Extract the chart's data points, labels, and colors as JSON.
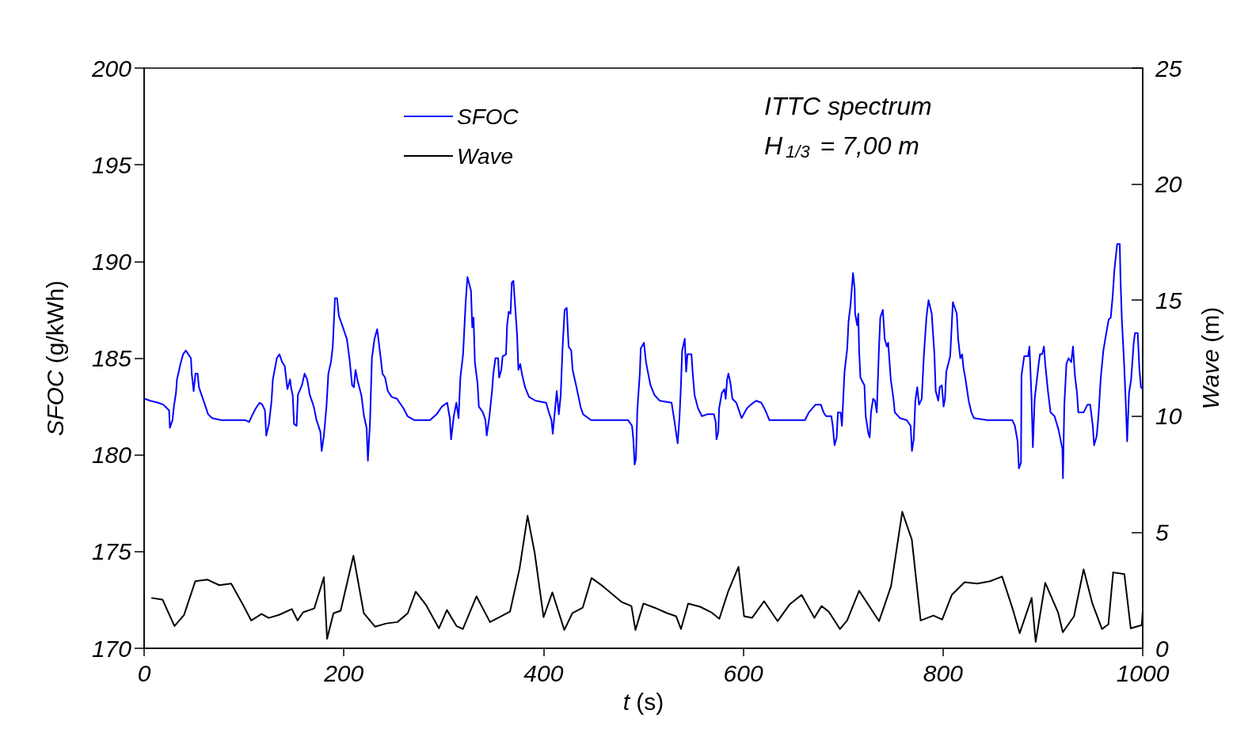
{
  "chart_data": {
    "type": "line",
    "xlabel": "t (s)",
    "ylabel": "SFOC (g/kWh)",
    "y2label": "Wave (m)",
    "annotations": [
      "ITTC spectrum",
      "H$_{1/3}$ = 7,00 m"
    ],
    "xlim": [
      0,
      1000
    ],
    "xticks": [
      0,
      200,
      400,
      600,
      800,
      1000
    ],
    "ylim": [
      170,
      200
    ],
    "yticks": [
      170,
      175,
      180,
      185,
      190,
      195,
      200
    ],
    "y2lim": [
      0,
      25
    ],
    "y2ticks": [
      0,
      5,
      10,
      15,
      20,
      25
    ],
    "legend": "top left",
    "marker": "none",
    "line_style": "solid",
    "series": [
      {
        "name": "SFOC",
        "color": "#0000ff",
        "x": [
          0.7,
          6,
          13.9,
          19.2,
          23.1,
          25,
          25.8,
          28.4,
          29.8,
          31.9,
          32.9,
          36.4,
          39,
          41.7,
          44.3,
          46.9,
          47.7,
          49.6,
          51.4,
          53.6,
          54.9,
          57.5,
          60.2,
          64.1,
          68.1,
          77.4,
          101.2,
          105.1,
          107.8,
          111.7,
          115.7,
          118.3,
          121,
          122.3,
          125,
          127.6,
          128.9,
          132.9,
          135.5,
          138.2,
          140.8,
          143.5,
          146.1,
          147.4,
          148.8,
          150.1,
          152.7,
          154,
          158,
          160.7,
          163.3,
          165.9,
          169.9,
          172.6,
          176.5,
          177.8,
          180,
          182.6,
          184.5,
          187.1,
          188.9,
          191.1,
          193.2,
          195,
          199,
          203,
          205.6,
          208.3,
          210.1,
          211.7,
          213.5,
          217.5,
          220.2,
          222.8,
          224.1,
          226.2,
          228.1,
          230.7,
          233.4,
          236,
          238.7,
          241.3,
          244,
          247.9,
          253.2,
          259.8,
          263.8,
          270.4,
          286.3,
          292.9,
          298.2,
          303.5,
          306.1,
          307.4,
          310.1,
          312.7,
          314.9,
          316.7,
          319.4,
          322,
          323.8,
          327.3,
          328.6,
          329.9,
          331.2,
          333.9,
          335.2,
          339.2,
          341.8,
          343.1,
          345.8,
          348.4,
          349.7,
          351.8,
          354.5,
          355.5,
          357.7,
          359,
          362.4,
          363.5,
          365.1,
          366.9,
          368.2,
          369.8,
          370.9,
          373.5,
          374.8,
          376.7,
          378.3,
          381.5,
          385.4,
          392,
          402.6,
          405.3,
          407.9,
          409.2,
          410.5,
          413.2,
          415.3,
          417.2,
          419,
          421.1,
          423.2,
          425.1,
          427.7,
          429.1,
          433,
          437,
          439.6,
          447.6,
          484.6,
          488.6,
          489.9,
          491.2,
          492.5,
          493.9,
          496.5,
          497.3,
          500.5,
          502.6,
          504.4,
          507.1,
          511,
          516.3,
          528.2,
          530.9,
          534.3,
          536.2,
          537.5,
          538.8,
          541.4,
          542.8,
          544.1,
          548.1,
          549.4,
          551.2,
          554.7,
          558.6,
          563.9,
          570.5,
          572.4,
          573.2,
          575,
          575.8,
          578.5,
          581.1,
          582.4,
          583.8,
          585.1,
          587.2,
          589.1,
          593,
          598.3,
          603.6,
          607.6,
          612.9,
          618.1,
          622.1,
          626.1,
          661.8,
          665.7,
          672.4,
          677.7,
          680.3,
          682.9,
          688.2,
          689.6,
          691.4,
          693.5,
          694.8,
          697.5,
          698.8,
          700.1,
          701.4,
          704.1,
          705.4,
          707.3,
          709.9,
          711.5,
          712,
          714.1,
          715.2,
          716,
          717.3,
          721.3,
          722.6,
          725.3,
          726.6,
          727.9,
          730,
          731.9,
          733.7,
          735.8,
          737.2,
          739.8,
          741.6,
          743.8,
          745.1,
          747.7,
          750.4,
          751.7,
          757,
          763.6,
          767.6,
          768.9,
          770.7,
          772.3,
          774.2,
          776,
          778.7,
          780.8,
          783.4,
          785.5,
          788.7,
          791.4,
          792.7,
          795.3,
          796.7,
          798.8,
          800.6,
          802,
          803.3,
          807.2,
          809.9,
          811.2,
          813.8,
          815.2,
          817.3,
          819.1,
          820.5,
          822.6,
          825.7,
          828.4,
          831,
          844.2,
          869.4,
          872,
          874.7,
          876,
          878.1,
          878.6,
          881.3,
          885.2,
          886.6,
          888.7,
          890,
          891.8,
          895.8,
          897.1,
          899.3,
          901.1,
          902.4,
          905.1,
          907.7,
          911.7,
          915.7,
          919.6,
          920.1,
          921.5,
          923.6,
          925.7,
          928.4,
          930.2,
          932.1,
          934.2,
          935.5,
          940.8,
          944.7,
          947.4,
          950,
          951.3,
          954,
          955.8,
          958,
          960.6,
          963.2,
          965.9,
          968,
          969.9,
          971.7,
          974.4,
          977,
          977.8,
          979.1,
          981.3,
          983.1,
          984.4,
          986.3,
          988.4,
          991,
          992.3,
          995,
          996.6,
          998.2,
          1000
        ],
        "values": [
          182.9,
          182.8,
          182.7,
          182.6,
          182.4,
          182.3,
          181.4,
          181.8,
          182.5,
          183.2,
          183.9,
          184.7,
          185.2,
          185.4,
          185.2,
          185,
          184.2,
          183.3,
          184.2,
          184.2,
          183.5,
          183.1,
          182.7,
          182.1,
          181.9,
          181.8,
          181.8,
          181.7,
          182,
          182.4,
          182.7,
          182.6,
          182.3,
          181,
          181.6,
          182.8,
          183.9,
          185,
          185.2,
          184.8,
          184.6,
          183.4,
          183.9,
          183.4,
          183.1,
          181.6,
          181.5,
          183.1,
          183.6,
          184.2,
          183.9,
          183.1,
          182.5,
          181.8,
          181.2,
          180.2,
          181,
          182.5,
          184.2,
          184.8,
          185.6,
          188.1,
          188.1,
          187.2,
          186.6,
          186,
          185,
          183.6,
          183.5,
          184.4,
          183.9,
          183.1,
          182,
          181.4,
          179.7,
          181.7,
          185,
          186,
          186.5,
          185.4,
          184.2,
          184,
          183.3,
          183,
          182.9,
          182.4,
          182,
          181.8,
          181.8,
          182.1,
          182.5,
          182.7,
          181.9,
          180.8,
          182,
          182.7,
          181.9,
          184,
          185.2,
          187.9,
          189.2,
          188.5,
          186.6,
          187.1,
          184.8,
          183.7,
          182.5,
          182.2,
          181.8,
          181,
          182,
          183.3,
          184.2,
          185,
          185,
          184,
          184.4,
          185.1,
          185.2,
          186.7,
          187.4,
          187.3,
          188.9,
          189,
          188.2,
          186.2,
          184.4,
          184.7,
          184.2,
          183.5,
          183,
          182.8,
          182.7,
          182.2,
          181.8,
          181.1,
          181.8,
          183.3,
          182.1,
          183.1,
          185.5,
          187.5,
          187.6,
          185.6,
          185.4,
          184.4,
          183.5,
          182.5,
          182.1,
          181.8,
          181.8,
          181.5,
          180.8,
          179.5,
          179.8,
          182.3,
          184.3,
          185.5,
          185.8,
          184.8,
          184.3,
          183.6,
          183.1,
          182.8,
          182.7,
          181.8,
          180.6,
          182,
          183.5,
          185.4,
          186,
          184.3,
          185.2,
          185.2,
          184.2,
          183.1,
          182.4,
          182,
          182.1,
          182.1,
          181.7,
          180.8,
          181.2,
          182.4,
          183.2,
          183.4,
          182.9,
          183.9,
          184.2,
          183.7,
          182.9,
          182.7,
          181.9,
          182.4,
          182.6,
          182.8,
          182.7,
          182.3,
          181.8,
          181.8,
          182.2,
          182.6,
          182.6,
          182.2,
          182,
          182,
          181.5,
          180.5,
          180.9,
          182.2,
          182.2,
          181.5,
          182.9,
          184.3,
          185.5,
          186.9,
          187.7,
          189.4,
          188.6,
          187.3,
          186.7,
          187.3,
          185.4,
          184,
          183.6,
          182,
          181.1,
          180.9,
          182.2,
          182.9,
          182.8,
          182.2,
          185.4,
          187.1,
          187.5,
          186,
          185.6,
          185.8,
          183.9,
          182.9,
          182.2,
          181.9,
          181.8,
          181.5,
          180.2,
          180.8,
          182.8,
          183.5,
          182.6,
          182.9,
          185.1,
          187.1,
          188,
          187.3,
          185.2,
          183.3,
          182.8,
          183.5,
          183.6,
          182.5,
          182.9,
          184.3,
          185.1,
          187.9,
          187.7,
          187.3,
          186,
          185,
          185.2,
          184.5,
          183.9,
          182.8,
          182.2,
          181.9,
          181.8,
          181.8,
          181.5,
          180.7,
          179.3,
          179.6,
          184.1,
          185.1,
          185.1,
          185.6,
          182.9,
          180.4,
          182.9,
          184.7,
          185.2,
          185.2,
          185.6,
          184.7,
          183.3,
          182.2,
          182,
          181.3,
          180.3,
          178.8,
          182.6,
          184.7,
          185,
          184.8,
          185.6,
          184.1,
          183.2,
          182.2,
          182.2,
          182.6,
          182.6,
          181.5,
          180.5,
          181,
          182.1,
          184,
          185.4,
          186.2,
          187,
          187.1,
          188.2,
          189.6,
          190.9,
          190.9,
          189,
          187,
          184.8,
          182.6,
          180.7,
          183.2,
          183.9,
          185.8,
          186.3,
          186.3,
          184.5,
          183.5,
          183.4
        ]
      },
      {
        "name": "Wave",
        "color": "#000000",
        "axis": "y2",
        "x": [
          7.2,
          18.4,
          30.4,
          40,
          51.2,
          63.2,
          75.2,
          87.2,
          99.2,
          107.2,
          117.6,
          124.8,
          135.2,
          148,
          153.6,
          159.2,
          170.4,
          180,
          183.2,
          189.6,
          196.8,
          209.6,
          220,
          231.2,
          242.4,
          253.6,
          264,
          272,
          282.4,
          295.2,
          303.2,
          312.8,
          319.2,
          332.8,
          346.4,
          360,
          366.4,
          376,
          384,
          391.2,
          400,
          408.8,
          420.8,
          428.8,
          439.2,
          448,
          459.2,
          478.4,
          488,
          492,
          500,
          511.2,
          524,
          532.8,
          537.6,
          544.8,
          556.8,
          568,
          576,
          584.8,
          595.2,
          600.8,
          608.8,
          620.8,
          634.4,
          646.4,
          658.4,
          671.2,
          678.4,
          685.6,
          692.8,
          696.8,
          704,
          716,
          736,
          748,
          759.2,
          768.8,
          777.6,
          790.4,
          799.2,
          808.8,
          821.6,
          834.4,
          847.2,
          859.2,
          869.6,
          876.8,
          888.8,
          892.8,
          902.4,
          915.2,
          920,
          931.2,
          940.8,
          949.6,
          959.2,
          965.6,
          970.4,
          981.6,
          988,
          999,
          1000
        ],
        "values": [
          2.17,
          2.1,
          0.96,
          1.44,
          2.89,
          2.96,
          2.72,
          2.79,
          1.86,
          1.2,
          1.48,
          1.31,
          1.44,
          1.69,
          1.2,
          1.55,
          1.72,
          3.06,
          0.41,
          1.51,
          1.62,
          3.99,
          1.51,
          0.93,
          1.07,
          1.13,
          1.51,
          2.44,
          1.86,
          0.86,
          1.65,
          0.96,
          0.83,
          2.24,
          1.13,
          1.44,
          1.58,
          3.44,
          5.71,
          4.09,
          1.34,
          2.41,
          0.79,
          1.51,
          1.75,
          3.03,
          2.68,
          1.99,
          1.82,
          0.79,
          1.93,
          1.75,
          1.51,
          1.38,
          0.83,
          1.93,
          1.79,
          1.55,
          1.27,
          2.44,
          3.51,
          1.38,
          1.31,
          2.03,
          1.17,
          1.89,
          2.3,
          1.31,
          1.82,
          1.58,
          1.1,
          0.83,
          1.2,
          2.48,
          1.17,
          2.68,
          5.88,
          4.68,
          1.2,
          1.41,
          1.24,
          2.3,
          2.85,
          2.79,
          2.89,
          3.09,
          1.72,
          0.65,
          2.17,
          0.28,
          2.82,
          1.55,
          0.69,
          1.38,
          3.4,
          1.93,
          0.83,
          1.03,
          3.27,
          3.2,
          0.86,
          1,
          1.62
        ]
      }
    ]
  }
}
